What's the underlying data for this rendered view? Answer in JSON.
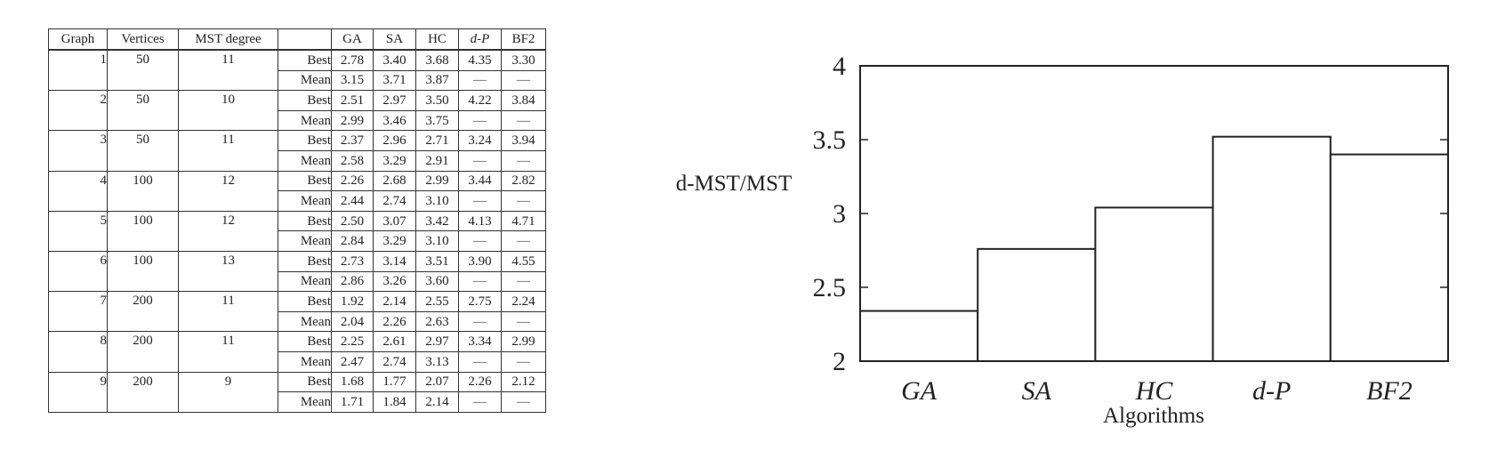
{
  "table": {
    "headers": [
      "Graph",
      "Vertices",
      "MST degree",
      "",
      "GA",
      "SA",
      "HC",
      "d-P",
      "BF2"
    ],
    "rows": [
      {
        "graph": "1",
        "vertices": "50",
        "mst_degree": "11",
        "best": [
          "2.78",
          "3.40",
          "3.68",
          "4.35",
          "3.30"
        ],
        "mean": [
          "3.15",
          "3.71",
          "3.87",
          "—",
          "—"
        ]
      },
      {
        "graph": "2",
        "vertices": "50",
        "mst_degree": "10",
        "best": [
          "2.51",
          "2.97",
          "3.50",
          "4.22",
          "3.84"
        ],
        "mean": [
          "2.99",
          "3.46",
          "3.75",
          "—",
          "—"
        ]
      },
      {
        "graph": "3",
        "vertices": "50",
        "mst_degree": "11",
        "best": [
          "2.37",
          "2.96",
          "2.71",
          "3.24",
          "3.94"
        ],
        "mean": [
          "2.58",
          "3.29",
          "2.91",
          "—",
          "—"
        ]
      },
      {
        "graph": "4",
        "vertices": "100",
        "mst_degree": "12",
        "best": [
          "2.26",
          "2.68",
          "2.99",
          "3.44",
          "2.82"
        ],
        "mean": [
          "2.44",
          "2.74",
          "3.10",
          "—",
          "—"
        ]
      },
      {
        "graph": "5",
        "vertices": "100",
        "mst_degree": "12",
        "best": [
          "2.50",
          "3.07",
          "3.42",
          "4.13",
          "4.71"
        ],
        "mean": [
          "2.84",
          "3.29",
          "3.10",
          "—",
          "—"
        ]
      },
      {
        "graph": "6",
        "vertices": "100",
        "mst_degree": "13",
        "best": [
          "2.73",
          "3.14",
          "3.51",
          "3.90",
          "4.55"
        ],
        "mean": [
          "2.86",
          "3.26",
          "3.60",
          "—",
          "—"
        ]
      },
      {
        "graph": "7",
        "vertices": "200",
        "mst_degree": "11",
        "best": [
          "1.92",
          "2.14",
          "2.55",
          "2.75",
          "2.24"
        ],
        "mean": [
          "2.04",
          "2.26",
          "2.63",
          "—",
          "—"
        ]
      },
      {
        "graph": "8",
        "vertices": "200",
        "mst_degree": "11",
        "best": [
          "2.25",
          "2.61",
          "2.97",
          "3.34",
          "2.99"
        ],
        "mean": [
          "2.47",
          "2.74",
          "3.13",
          "—",
          "—"
        ]
      },
      {
        "graph": "9",
        "vertices": "200",
        "mst_degree": "9",
        "best": [
          "1.68",
          "1.77",
          "2.07",
          "2.26",
          "2.12"
        ],
        "mean": [
          "1.71",
          "1.84",
          "2.14",
          "—",
          "—"
        ]
      }
    ],
    "stat_labels": {
      "best": "Best",
      "mean": "Mean"
    }
  },
  "chart_data": {
    "type": "bar",
    "categories": [
      "GA",
      "SA",
      "HC",
      "d-P",
      "BF2"
    ],
    "values": [
      2.34,
      2.76,
      3.04,
      3.52,
      3.4
    ],
    "ylabel": "d-MST/MST",
    "xlabel": "Algorithms",
    "ylim": [
      2,
      4
    ],
    "yticks": [
      2,
      2.5,
      3,
      3.5,
      4
    ],
    "ytick_labels": [
      "2",
      "2.5",
      "3",
      "3.5",
      "4"
    ],
    "grid": false,
    "bar_fill": "#ffffff",
    "bar_stroke": "#222222"
  }
}
